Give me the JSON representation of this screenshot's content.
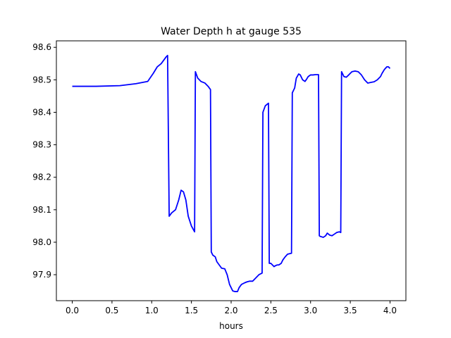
{
  "chart_data": {
    "type": "line",
    "title": "Water Depth h at gauge 535",
    "xlabel": "hours",
    "ylabel": "",
    "xlim": [
      -0.2,
      4.2
    ],
    "ylim": [
      97.82,
      98.62
    ],
    "grid": false,
    "x_ticks": [
      0.0,
      0.5,
      1.0,
      1.5,
      2.0,
      2.5,
      3.0,
      3.5,
      4.0
    ],
    "x_tick_labels": [
      "0.0",
      "0.5",
      "1.0",
      "1.5",
      "2.0",
      "2.5",
      "3.0",
      "3.5",
      "4.0"
    ],
    "y_ticks": [
      97.9,
      98.0,
      98.1,
      98.2,
      98.3,
      98.4,
      98.5,
      98.6
    ],
    "y_tick_labels": [
      "97.9",
      "98.0",
      "98.1",
      "98.2",
      "98.3",
      "98.4",
      "98.5",
      "98.6"
    ],
    "series": [
      {
        "color": "#0000ff",
        "x": [
          0.0,
          0.3,
          0.6,
          0.8,
          0.95,
          1.02,
          1.07,
          1.12,
          1.18,
          1.2,
          1.22,
          1.25,
          1.3,
          1.34,
          1.37,
          1.4,
          1.43,
          1.46,
          1.5,
          1.54,
          1.55,
          1.58,
          1.62,
          1.67,
          1.71,
          1.74,
          1.75,
          1.77,
          1.8,
          1.82,
          1.85,
          1.88,
          1.92,
          1.95,
          1.98,
          2.02,
          2.05,
          2.08,
          2.1,
          2.13,
          2.17,
          2.2,
          2.23,
          2.27,
          2.31,
          2.35,
          2.39,
          2.4,
          2.43,
          2.47,
          2.48,
          2.5,
          2.52,
          2.54,
          2.56,
          2.58,
          2.6,
          2.63,
          2.65,
          2.68,
          2.71,
          2.74,
          2.76,
          2.77,
          2.8,
          2.82,
          2.85,
          2.87,
          2.9,
          2.93,
          2.95,
          2.97,
          3.0,
          3.03,
          3.06,
          3.1,
          3.11,
          3.12,
          3.16,
          3.19,
          3.21,
          3.24,
          3.27,
          3.3,
          3.33,
          3.36,
          3.38,
          3.39,
          3.42,
          3.45,
          3.48,
          3.52,
          3.56,
          3.6,
          3.64,
          3.68,
          3.72,
          3.76,
          3.8,
          3.84,
          3.88,
          3.9,
          3.93,
          3.96,
          3.98,
          4.0
        ],
        "y": [
          98.48,
          98.48,
          98.482,
          98.488,
          98.495,
          98.52,
          98.54,
          98.55,
          98.57,
          98.575,
          98.08,
          98.09,
          98.1,
          98.13,
          98.16,
          98.155,
          98.13,
          98.08,
          98.05,
          98.032,
          98.525,
          98.505,
          98.495,
          98.49,
          98.48,
          98.47,
          97.97,
          97.96,
          97.955,
          97.94,
          97.93,
          97.92,
          97.918,
          97.9,
          97.87,
          97.85,
          97.848,
          97.848,
          97.86,
          97.87,
          97.875,
          97.878,
          97.88,
          97.88,
          97.89,
          97.9,
          97.905,
          98.4,
          98.42,
          98.428,
          97.935,
          97.935,
          97.93,
          97.925,
          97.928,
          97.93,
          97.93,
          97.935,
          97.945,
          97.955,
          97.963,
          97.965,
          97.966,
          98.46,
          98.475,
          98.505,
          98.518,
          98.515,
          98.5,
          98.495,
          98.502,
          98.51,
          98.515,
          98.515,
          98.516,
          98.516,
          98.02,
          98.018,
          98.015,
          98.02,
          98.028,
          98.022,
          98.02,
          98.025,
          98.03,
          98.032,
          98.03,
          98.525,
          98.51,
          98.508,
          98.515,
          98.525,
          98.527,
          98.525,
          98.515,
          98.5,
          98.49,
          98.492,
          98.494,
          98.5,
          98.51,
          98.52,
          98.532,
          98.54,
          98.54,
          98.535
        ]
      }
    ]
  }
}
